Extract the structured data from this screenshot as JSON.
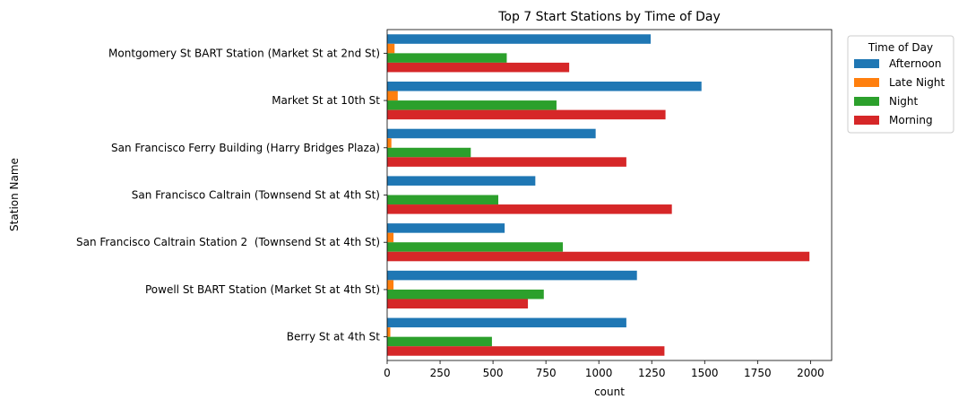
{
  "chart_data": {
    "type": "bar",
    "orientation": "horizontal",
    "title": "Top 7 Start Stations by Time of Day",
    "xlabel": "count",
    "ylabel": "Station Name",
    "xlim": [
      0,
      2100
    ],
    "xticks": [
      0,
      250,
      500,
      750,
      1000,
      1250,
      1500,
      1750,
      2000
    ],
    "grid": false,
    "legend": {
      "title": "Time of Day",
      "placement": "outside-upper-right"
    },
    "categories": [
      "Montgomery St BART Station (Market St at 2nd St)",
      "Market St at 10th St",
      "San Francisco Ferry Building (Harry Bridges Plaza)",
      "San Francisco Caltrain (Townsend St at 4th St)",
      "San Francisco Caltrain Station 2  (Townsend St at 4th St)",
      "Powell St BART Station (Market St at 4th St)",
      "Berry St at 4th St"
    ],
    "series": [
      {
        "name": "Afternoon",
        "color": "#1f77b4",
        "values": [
          1245,
          1485,
          985,
          700,
          555,
          1180,
          1130
        ]
      },
      {
        "name": "Late Night",
        "color": "#ff7f0e",
        "values": [
          35,
          50,
          20,
          0,
          30,
          30,
          15
        ]
      },
      {
        "name": "Night",
        "color": "#2ca02c",
        "values": [
          565,
          800,
          395,
          525,
          830,
          740,
          495
        ]
      },
      {
        "name": "Morning",
        "color": "#d62728",
        "values": [
          860,
          1315,
          1130,
          1345,
          1995,
          665,
          1310
        ]
      }
    ]
  }
}
